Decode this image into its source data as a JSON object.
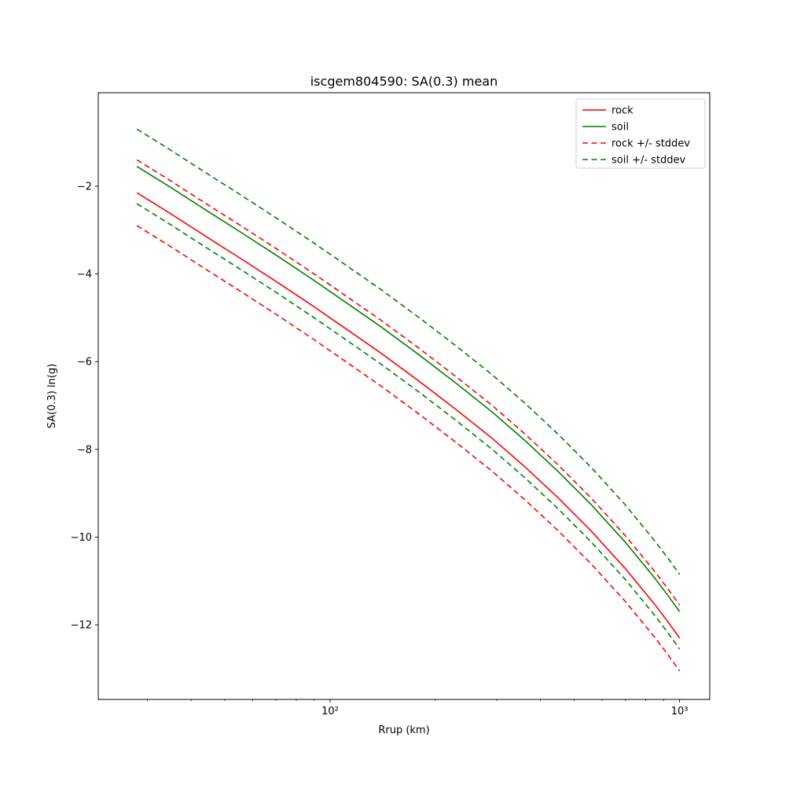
{
  "figure": {
    "title": "iscgem804590: SA(0.3) mean"
  },
  "chart_data": {
    "type": "line",
    "title": "iscgem804590: SA(0.3) mean",
    "xlabel": "Rrup (km)",
    "ylabel": "SA(0.3) ln(g)",
    "x_scale": "log",
    "y_scale": "linear",
    "grid": false,
    "legend_position": "upper right",
    "xlim": [
      21.7,
      1220
    ],
    "ylim": [
      -13.7,
      0.13
    ],
    "x_ticks": [
      {
        "value": 100,
        "label": "10²"
      },
      {
        "value": 1000,
        "label": "10³"
      }
    ],
    "x_minor_ticks": [
      30,
      40,
      50,
      60,
      70,
      80,
      90,
      200,
      300,
      400,
      500,
      600,
      700,
      800,
      900
    ],
    "y_ticks": [
      {
        "value": -2,
        "label": "−2"
      },
      {
        "value": -4,
        "label": "−4"
      },
      {
        "value": -6,
        "label": "−6"
      },
      {
        "value": -8,
        "label": "−8"
      },
      {
        "value": -10,
        "label": "−10"
      },
      {
        "value": -12,
        "label": "−12"
      }
    ],
    "x": [
      28,
      35,
      45,
      56,
      70,
      90,
      110,
      140,
      180,
      230,
      290,
      360,
      450,
      560,
      700,
      850,
      930,
      1000
    ],
    "series": [
      {
        "name": "rock",
        "label": "rock",
        "color": "#ff0000",
        "style": "solid",
        "in_legend": true,
        "values": [
          -2.15,
          -2.63,
          -3.19,
          -3.67,
          -4.17,
          -4.75,
          -5.23,
          -5.81,
          -6.45,
          -7.1,
          -7.74,
          -8.39,
          -9.11,
          -9.87,
          -10.72,
          -11.54,
          -11.95,
          -12.3
        ]
      },
      {
        "name": "soil",
        "label": "soil",
        "color": "#008000",
        "style": "solid",
        "in_legend": true,
        "values": [
          -1.55,
          -2.03,
          -2.59,
          -3.07,
          -3.57,
          -4.15,
          -4.63,
          -5.21,
          -5.85,
          -6.5,
          -7.14,
          -7.79,
          -8.51,
          -9.27,
          -10.12,
          -10.94,
          -11.35,
          -11.7
        ]
      },
      {
        "name": "rock_plus_stddev",
        "label": "rock +/- stddev",
        "color": "#ff0000",
        "style": "dashed",
        "in_legend": true,
        "values": [
          -1.4,
          -1.88,
          -2.44,
          -2.92,
          -3.42,
          -4.0,
          -4.48,
          -5.06,
          -5.7,
          -6.35,
          -6.99,
          -7.64,
          -8.36,
          -9.12,
          -9.97,
          -10.79,
          -11.2,
          -11.55
        ]
      },
      {
        "name": "rock_minus_stddev",
        "label": "",
        "color": "#ff0000",
        "style": "dashed",
        "in_legend": false,
        "values": [
          -2.9,
          -3.38,
          -3.94,
          -4.42,
          -4.92,
          -5.5,
          -5.98,
          -6.56,
          -7.2,
          -7.85,
          -8.49,
          -9.14,
          -9.86,
          -10.62,
          -11.47,
          -12.29,
          -12.7,
          -13.05
        ]
      },
      {
        "name": "soil_plus_stddev",
        "label": "soil +/- stddev",
        "color": "#008000",
        "style": "dashed",
        "in_legend": true,
        "values": [
          -0.7,
          -1.18,
          -1.74,
          -2.22,
          -2.72,
          -3.3,
          -3.78,
          -4.36,
          -5.0,
          -5.65,
          -6.29,
          -6.94,
          -7.66,
          -8.42,
          -9.27,
          -10.09,
          -10.5,
          -10.85
        ]
      },
      {
        "name": "soil_minus_stddev",
        "label": "",
        "color": "#008000",
        "style": "dashed",
        "in_legend": false,
        "values": [
          -2.4,
          -2.88,
          -3.44,
          -3.92,
          -4.42,
          -5.0,
          -5.48,
          -6.06,
          -6.7,
          -7.35,
          -7.99,
          -8.64,
          -9.36,
          -10.12,
          -10.97,
          -11.79,
          -12.2,
          -12.55
        ]
      }
    ],
    "legend": {
      "entries": [
        {
          "label": "rock",
          "series": "rock"
        },
        {
          "label": "soil",
          "series": "soil"
        },
        {
          "label": "rock +/- stddev",
          "series": "rock_plus_stddev"
        },
        {
          "label": "soil +/- stddev",
          "series": "soil_plus_stddev"
        }
      ]
    }
  }
}
